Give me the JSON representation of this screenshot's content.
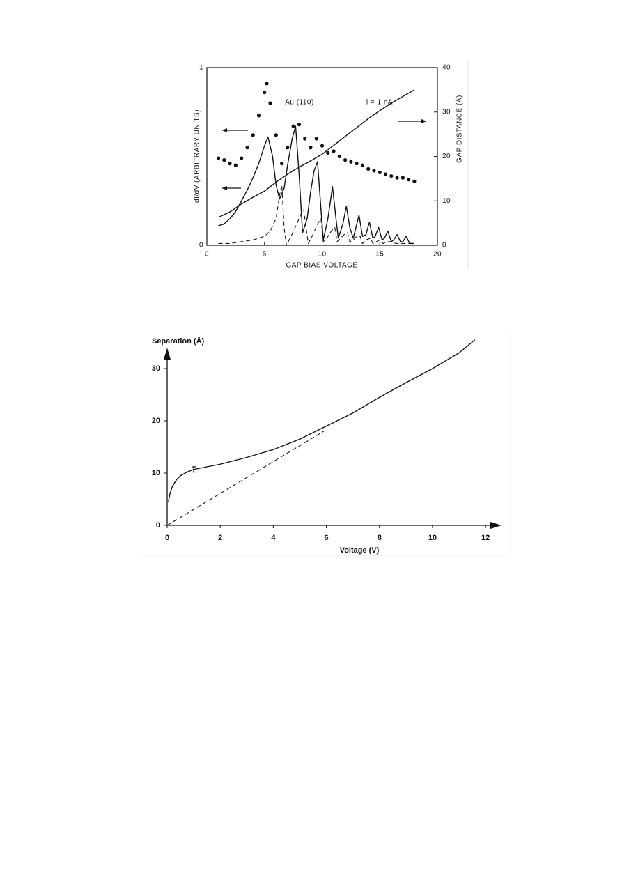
{
  "chart_data": [
    {
      "type": "line",
      "xlabel": "GAP BIAS VOLTAGE",
      "ylabel": "dI/dV (ARBITRARY UNITS)",
      "y2label": "GAP DISTANCE (Å)",
      "annotations": [
        "Au (110)",
        "i = 1 nA"
      ],
      "xlim": [
        0,
        20
      ],
      "xticks": [
        0,
        5,
        10,
        15,
        20
      ],
      "ylim": [
        0,
        1
      ],
      "yticks": [
        0,
        1
      ],
      "y2lim": [
        0,
        40
      ],
      "y2ticks": [
        0,
        10,
        20,
        30,
        40
      ],
      "grid": false,
      "series": [
        {
          "style": "markers",
          "color": "#111111",
          "x": [
            1,
            1.5,
            2,
            2.5,
            3,
            3.5,
            4,
            4.5,
            5,
            5.2,
            5.5,
            6,
            6.5,
            7,
            7.5,
            8,
            8.5,
            9,
            9.5,
            10,
            10.5,
            11,
            11.5,
            12,
            12.5,
            13,
            13.5,
            14,
            14.5,
            15,
            15.5,
            16,
            16.5,
            17,
            17.5,
            18
          ],
          "values": [
            0.49,
            0.48,
            0.46,
            0.45,
            0.49,
            0.55,
            0.62,
            0.73,
            0.86,
            0.91,
            0.8,
            0.62,
            0.46,
            0.55,
            0.67,
            0.68,
            0.6,
            0.55,
            0.6,
            0.56,
            0.52,
            0.53,
            0.5,
            0.48,
            0.47,
            0.46,
            0.45,
            0.43,
            0.42,
            0.41,
            0.4,
            0.39,
            0.38,
            0.38,
            0.37,
            0.36
          ]
        },
        {
          "style": "solid",
          "color": "#111111",
          "x": [
            1,
            1.5,
            2,
            2.5,
            3,
            3.5,
            4,
            4.5,
            5,
            5.3,
            5.7,
            6,
            6.3,
            6.7,
            7,
            7.4,
            7.7,
            8,
            8.3,
            8.7,
            9,
            9.3,
            9.6,
            9.9,
            10.1,
            10.5,
            10.9,
            11.2,
            11.4,
            11.8,
            12.1,
            12.4,
            12.7,
            13.2,
            13.5,
            13.8,
            14.1,
            14.4,
            14.6,
            14.9,
            15.2,
            15.4,
            15.7,
            16,
            16.2,
            16.5,
            16.8,
            17,
            17.3,
            17.6,
            18
          ],
          "values": [
            0.11,
            0.12,
            0.15,
            0.19,
            0.25,
            0.31,
            0.38,
            0.46,
            0.56,
            0.61,
            0.5,
            0.34,
            0.26,
            0.32,
            0.45,
            0.6,
            0.67,
            0.4,
            0.07,
            0.15,
            0.3,
            0.42,
            0.47,
            0.2,
            0.03,
            0.15,
            0.33,
            0.15,
            0.04,
            0.12,
            0.22,
            0.1,
            0.04,
            0.17,
            0.05,
            0.06,
            0.13,
            0.04,
            0.05,
            0.1,
            0.03,
            0.04,
            0.08,
            0.02,
            0.03,
            0.06,
            0.02,
            0.02,
            0.05,
            0.01,
            0.01
          ]
        },
        {
          "style": "dashed",
          "color": "#111111",
          "x": [
            1,
            2,
            3,
            4,
            5,
            5.5,
            6,
            6.3,
            6.5,
            6.7,
            6.9,
            7.3,
            7.8,
            8.2,
            8.4,
            8.6,
            8.8,
            9.2,
            9.6,
            9.9,
            10.1,
            10.4,
            10.8,
            11.1,
            11.3,
            11.6,
            11.9,
            12.2,
            12.4,
            12.7,
            13,
            13.3,
            13.5,
            13.8,
            14.2,
            14.4,
            14.7,
            15,
            15.3,
            15.6,
            16,
            16.4,
            17,
            18
          ],
          "values": [
            0.01,
            0.01,
            0.02,
            0.03,
            0.05,
            0.08,
            0.15,
            0.28,
            0.34,
            0.1,
            0,
            0.05,
            0.12,
            0.18,
            0.2,
            0.1,
            0.01,
            0.06,
            0.12,
            0.15,
            0.02,
            0.04,
            0.08,
            0.1,
            0.02,
            0.04,
            0.06,
            0.07,
            0.02,
            0.03,
            0.05,
            0.05,
            0.01,
            0.03,
            0.04,
            0.01,
            0.02,
            0.03,
            0.01,
            0.02,
            0.02,
            0.01,
            0.01,
            0.01
          ]
        },
        {
          "style": "solid",
          "color": "#111111",
          "axis": "y2",
          "x": [
            1,
            2,
            3,
            4,
            5,
            6,
            7,
            8,
            9,
            10,
            11,
            12,
            13,
            14,
            15,
            16,
            17,
            18
          ],
          "values": [
            6.3,
            7.5,
            9.3,
            10.8,
            12.2,
            14.2,
            16,
            17.6,
            19,
            20.5,
            22.5,
            24.5,
            26.5,
            28.5,
            30.3,
            32,
            33.5,
            35
          ]
        }
      ]
    },
    {
      "type": "line",
      "xlabel": "Voltage (V)",
      "ylabel": "Separation (Å)",
      "xlim": [
        0,
        12.6
      ],
      "xticks": [
        0,
        2,
        4,
        6,
        8,
        10,
        12
      ],
      "ylim": [
        0,
        34
      ],
      "yticks": [
        0,
        10,
        20,
        30
      ],
      "grid": false,
      "series": [
        {
          "style": "solid",
          "color": "#111111",
          "x": [
            0.05,
            0.1,
            0.2,
            0.35,
            0.5,
            0.75,
            1,
            1.5,
            2,
            3,
            4,
            5,
            6,
            7,
            8,
            9,
            10,
            11,
            11.6
          ],
          "values": [
            4.5,
            6,
            7.5,
            8.7,
            9.5,
            10.2,
            10.7,
            11.2,
            11.7,
            13,
            14.5,
            16.5,
            19,
            21.5,
            24.5,
            27.3,
            30,
            33,
            35.5
          ]
        },
        {
          "style": "dashed",
          "color": "#111111",
          "x": [
            0,
            5.9
          ],
          "values": [
            0,
            18
          ]
        }
      ],
      "error_bar": {
        "x": 1,
        "y": 10.7,
        "error": 0.5
      }
    }
  ]
}
